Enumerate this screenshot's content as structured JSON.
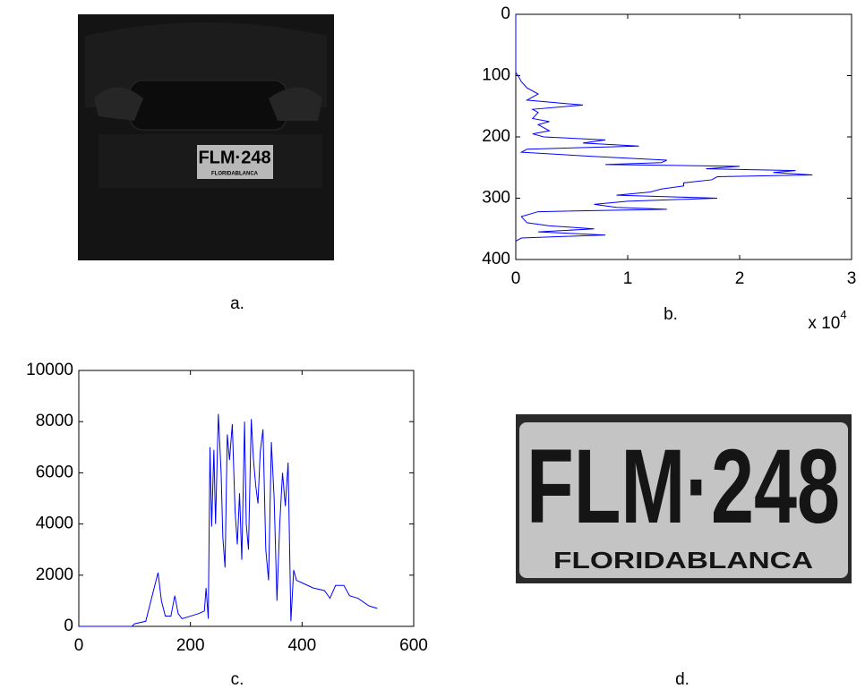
{
  "images": [
    {
      "caption": "a.",
      "plate_text": "FLM·248",
      "plate_subtext": "FLORIDABLANCA"
    },
    {
      "caption": "d.",
      "plate_text": "FLM·248",
      "plate_subtext": "FLORIDABLANCA"
    }
  ],
  "chart_data": [
    {
      "type": "line",
      "orientation": "horizontal",
      "caption": "b.",
      "color": "#0000ff",
      "rows": [
        0,
        95,
        100,
        110,
        120,
        130,
        140,
        148,
        155,
        160,
        170,
        175,
        180,
        190,
        195,
        200,
        205,
        210,
        215,
        220,
        225,
        232,
        238,
        242,
        245,
        248,
        252,
        255,
        258,
        262,
        265,
        270,
        275,
        280,
        285,
        290,
        295,
        300,
        305,
        310,
        315,
        318,
        322,
        330,
        340,
        345,
        350,
        355,
        360,
        365,
        370
      ],
      "values": [
        0,
        0,
        0.02,
        0.05,
        0.1,
        0.2,
        0.1,
        0.6,
        0.15,
        0.2,
        0.15,
        0.3,
        0.2,
        0.3,
        0.15,
        0.25,
        0.8,
        0.6,
        1.1,
        0.1,
        0.05,
        0.7,
        1.35,
        1.3,
        0.8,
        2.0,
        1.7,
        2.5,
        2.3,
        2.65,
        1.8,
        1.75,
        1.5,
        1.5,
        1.3,
        1.2,
        0.9,
        1.8,
        1.0,
        0.7,
        0.9,
        1.35,
        0.2,
        0.05,
        0.1,
        0.3,
        0.7,
        0.2,
        0.8,
        0.05,
        0
      ],
      "xlim": [
        0,
        3
      ],
      "xticks": [
        0,
        1,
        2,
        3
      ],
      "ylim": [
        0,
        400
      ],
      "y_inverted": true,
      "yticks": [
        0,
        100,
        200,
        300,
        400
      ],
      "x_multiplier": {
        "base": "x 10",
        "exponent": "4"
      }
    },
    {
      "type": "line",
      "caption": "c.",
      "color": "#0000ff",
      "x": [
        0,
        95,
        100,
        120,
        135,
        142,
        148,
        155,
        165,
        172,
        178,
        185,
        200,
        215,
        225,
        228,
        232,
        235,
        238,
        242,
        245,
        250,
        255,
        258,
        262,
        266,
        270,
        275,
        280,
        284,
        288,
        292,
        297,
        300,
        304,
        309,
        313,
        317,
        321,
        325,
        330,
        335,
        340,
        345,
        350,
        355,
        360,
        365,
        370,
        375,
        380,
        385,
        390,
        400,
        420,
        440,
        450,
        460,
        475,
        485,
        500,
        520,
        535
      ],
      "values": [
        0,
        0,
        100,
        200,
        1500,
        2100,
        1000,
        400,
        400,
        1200,
        500,
        300,
        400,
        500,
        600,
        1500,
        300,
        7000,
        3900,
        6900,
        4000,
        8300,
        6000,
        3500,
        2300,
        7500,
        6500,
        7900,
        4500,
        3200,
        5200,
        2600,
        8000,
        4000,
        3000,
        8100,
        6500,
        5500,
        4800,
        6800,
        7700,
        3000,
        1800,
        7200,
        5000,
        1000,
        4000,
        6000,
        4700,
        6400,
        200,
        2200,
        1800,
        1700,
        1500,
        1400,
        1100,
        1600,
        1600,
        1200,
        1100,
        800,
        700
      ],
      "xlim": [
        0,
        600
      ],
      "xticks": [
        0,
        200,
        400,
        600
      ],
      "ylim": [
        0,
        10000
      ],
      "yticks": [
        0,
        2000,
        4000,
        6000,
        8000,
        10000
      ]
    }
  ]
}
